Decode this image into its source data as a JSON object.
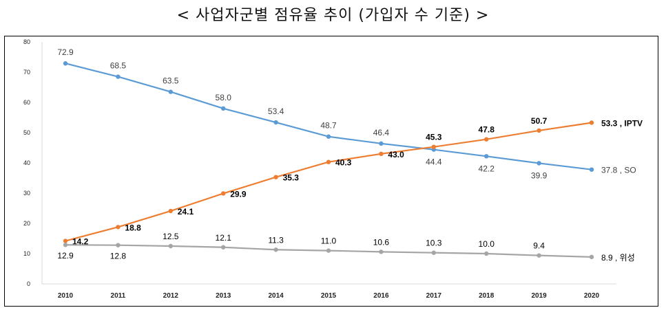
{
  "title": "< 사업자군별 점유율 추이 (가입자 수 기준) >",
  "chart_data": {
    "type": "line",
    "title": "< 사업자군별 점유율 추이 (가입자 수 기준) >",
    "xlabel": "",
    "ylabel": "",
    "x": [
      "2010",
      "2011",
      "2012",
      "2013",
      "2014",
      "2015",
      "2016",
      "2017",
      "2018",
      "2019",
      "2020"
    ],
    "ylim": [
      0,
      80
    ],
    "yticks": [
      0,
      10,
      20,
      30,
      40,
      50,
      60,
      70,
      80
    ],
    "grid": false,
    "legend": "none (series names appended to last data label)",
    "series": [
      {
        "name": "SO",
        "color": "#5B9BD5",
        "values": [
          72.9,
          68.5,
          63.5,
          58.0,
          53.4,
          48.7,
          46.4,
          44.4,
          42.2,
          39.9,
          37.8
        ]
      },
      {
        "name": "IPTV",
        "color": "#ED7D31",
        "values": [
          14.2,
          18.8,
          24.1,
          29.9,
          35.3,
          40.3,
          43.0,
          45.3,
          47.8,
          50.7,
          53.3
        ]
      },
      {
        "name": "위성",
        "color": "#A5A5A5",
        "values": [
          12.9,
          12.8,
          12.5,
          12.1,
          11.3,
          11.0,
          10.6,
          10.3,
          10.0,
          9.4,
          8.9
        ]
      }
    ]
  }
}
